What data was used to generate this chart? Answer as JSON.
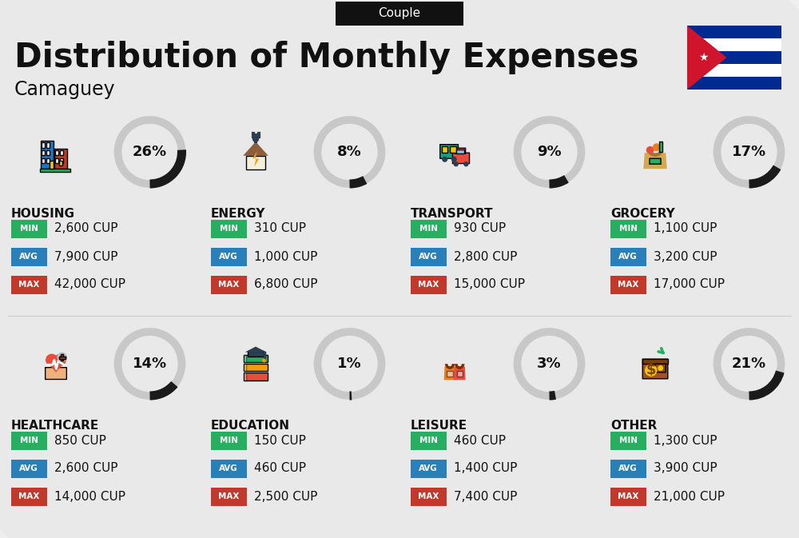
{
  "title": "Distribution of Monthly Expenses",
  "subtitle": "Couple",
  "city": "Camaguey",
  "bg_color": "#efefef",
  "categories": [
    {
      "name": "HOUSING",
      "pct": 26,
      "min_val": "2,600 CUP",
      "avg_val": "7,900 CUP",
      "max_val": "42,000 CUP",
      "row": 0,
      "col": 0
    },
    {
      "name": "ENERGY",
      "pct": 8,
      "min_val": "310 CUP",
      "avg_val": "1,000 CUP",
      "max_val": "6,800 CUP",
      "row": 0,
      "col": 1
    },
    {
      "name": "TRANSPORT",
      "pct": 9,
      "min_val": "930 CUP",
      "avg_val": "2,800 CUP",
      "max_val": "15,000 CUP",
      "row": 0,
      "col": 2
    },
    {
      "name": "GROCERY",
      "pct": 17,
      "min_val": "1,100 CUP",
      "avg_val": "3,200 CUP",
      "max_val": "17,000 CUP",
      "row": 0,
      "col": 3
    },
    {
      "name": "HEALTHCARE",
      "pct": 14,
      "min_val": "850 CUP",
      "avg_val": "2,600 CUP",
      "max_val": "14,000 CUP",
      "row": 1,
      "col": 0
    },
    {
      "name": "EDUCATION",
      "pct": 1,
      "min_val": "150 CUP",
      "avg_val": "460 CUP",
      "max_val": "2,500 CUP",
      "row": 1,
      "col": 1
    },
    {
      "name": "LEISURE",
      "pct": 3,
      "min_val": "460 CUP",
      "avg_val": "1,400 CUP",
      "max_val": "7,400 CUP",
      "row": 1,
      "col": 2
    },
    {
      "name": "OTHER",
      "pct": 21,
      "min_val": "1,300 CUP",
      "avg_val": "3,900 CUP",
      "max_val": "21,000 CUP",
      "row": 1,
      "col": 3
    }
  ],
  "min_color": "#27ae60",
  "avg_color": "#2980b9",
  "max_color": "#c0392b",
  "font_color": "#111111",
  "stripe_color": "#d8d8d8",
  "arc_bg_color": "#c8c8c8",
  "arc_fg_color": "#1a1a1a"
}
